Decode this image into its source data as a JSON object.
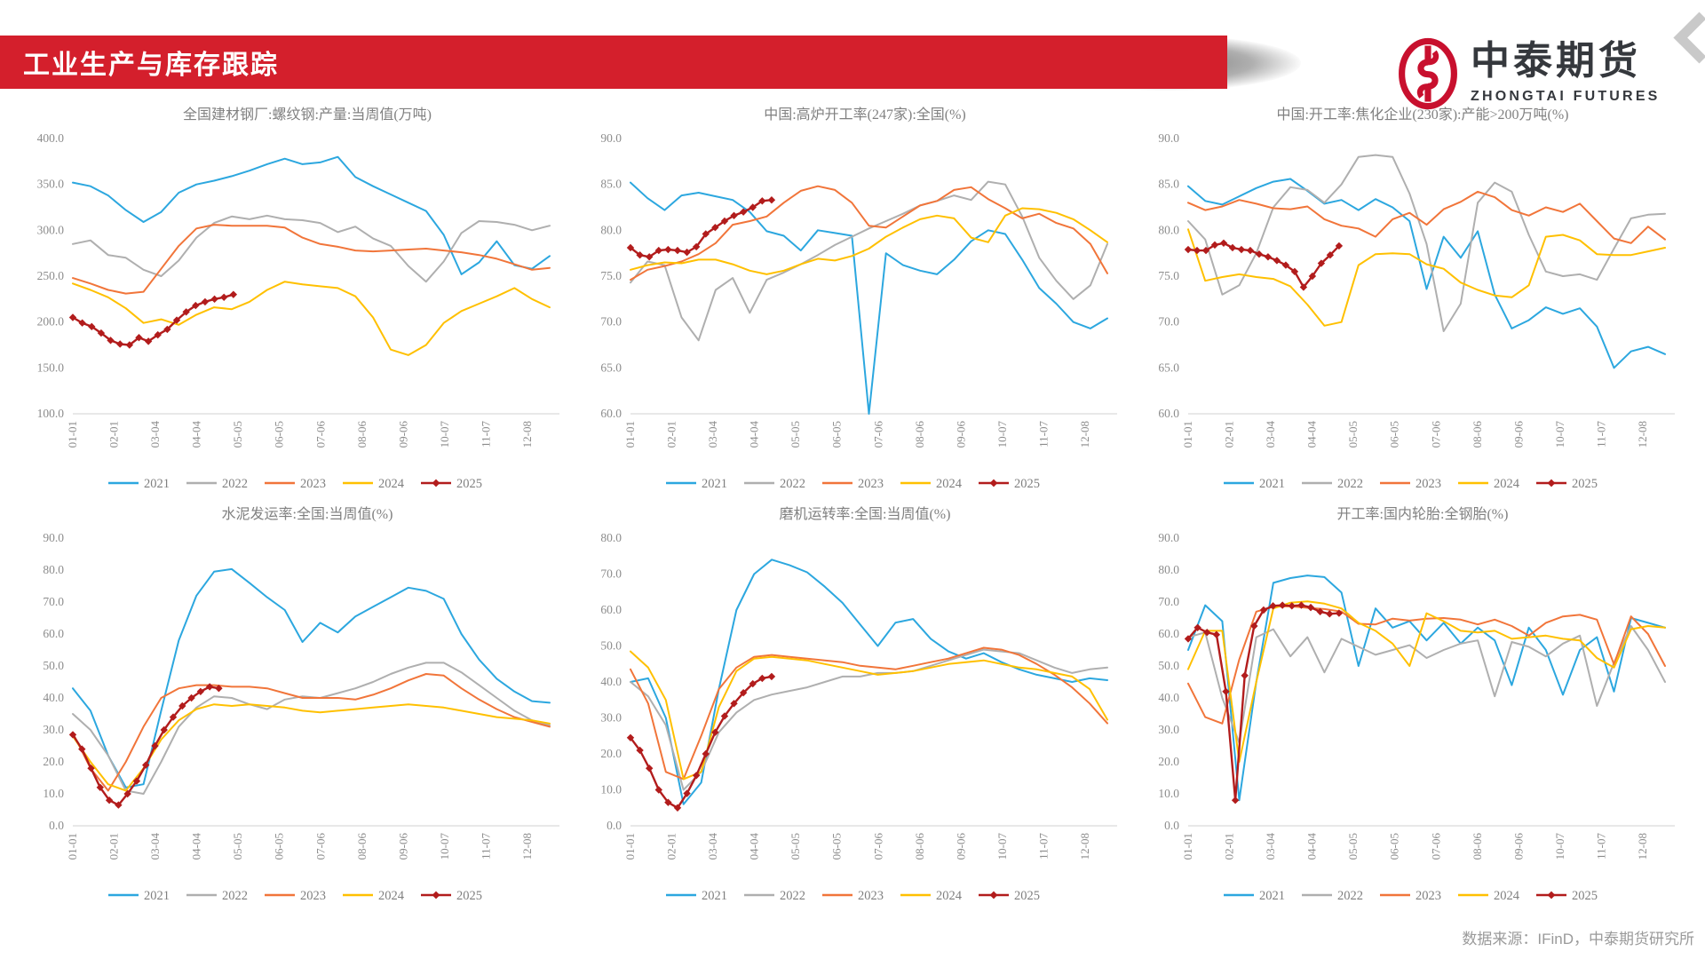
{
  "header": {
    "title": "工业生产与库存跟踪",
    "brand_cn": "中泰期货",
    "brand_en": "ZHONGTAI FUTURES"
  },
  "footer": {
    "source": "数据来源：IFinD，中泰期货研究所"
  },
  "palette": {
    "2021": "#2CA7DF",
    "2022": "#AFAFAF",
    "2023": "#F1753A",
    "2024": "#FFC000",
    "2025": "#B21C1C",
    "banner": "#D41F2C",
    "logo_red": "#C8102E",
    "axis_line": "#D9D9D9",
    "tick_text": "#8C8C8C",
    "title_text": "#808080"
  },
  "legend": [
    "2021",
    "2022",
    "2023",
    "2024",
    "2025"
  ],
  "x_tick_labels": [
    "01-01",
    "02-01",
    "03-04",
    "04-04",
    "05-05",
    "06-05",
    "07-06",
    "08-06",
    "09-06",
    "10-07",
    "11-07",
    "12-08"
  ],
  "chart_data": [
    {
      "type": "line",
      "title": "全国建材钢厂:螺纹钢:产量:当周值(万吨)",
      "ylim": [
        100,
        400
      ],
      "ystep": 50,
      "grid": false,
      "legend_position": "bottom",
      "series": [
        {
          "name": "2021",
          "color": "#2CA7DF",
          "span": 0.98,
          "values": [
            352,
            348,
            338,
            322,
            309,
            320,
            341,
            350,
            354,
            359,
            365,
            372,
            378,
            372,
            374,
            380,
            358,
            348,
            339,
            330,
            321,
            295,
            252,
            265,
            288,
            262,
            258,
            272
          ]
        },
        {
          "name": "2022",
          "color": "#AFAFAF",
          "span": 0.98,
          "values": [
            285,
            289,
            273,
            270,
            257,
            250,
            267,
            292,
            308,
            315,
            312,
            316,
            312,
            311,
            308,
            298,
            304,
            291,
            283,
            261,
            244,
            266,
            297,
            310,
            309,
            306,
            300,
            305
          ]
        },
        {
          "name": "2023",
          "color": "#F1753A",
          "span": 0.98,
          "values": [
            248,
            242,
            235,
            231,
            233,
            258,
            283,
            302,
            306,
            305,
            305,
            305,
            303,
            292,
            285,
            282,
            278,
            277,
            278,
            279,
            280,
            278,
            276,
            273,
            269,
            263,
            257,
            259
          ]
        },
        {
          "name": "2024",
          "color": "#FFC000",
          "span": 0.98,
          "values": [
            242,
            235,
            227,
            215,
            199,
            203,
            197,
            208,
            216,
            214,
            222,
            235,
            244,
            241,
            239,
            237,
            228,
            205,
            170,
            164,
            175,
            199,
            212,
            220,
            228,
            237,
            225,
            216
          ]
        },
        {
          "name": "2025",
          "color": "#B21C1C",
          "span": 0.33,
          "marker": "diamond",
          "values": [
            205,
            199,
            195,
            188,
            180,
            176,
            175,
            183,
            179,
            186,
            192,
            202,
            211,
            218,
            222,
            225,
            227,
            230
          ]
        }
      ]
    },
    {
      "type": "line",
      "title": "中国:高炉开工率(247家):全国(%)",
      "ylim": [
        60,
        90
      ],
      "ystep": 5,
      "grid": false,
      "legend_position": "bottom",
      "series": [
        {
          "name": "2021",
          "color": "#2CA7DF",
          "span": 0.98,
          "values": [
            85.2,
            83.5,
            82.2,
            83.8,
            84.1,
            83.7,
            83.3,
            82.0,
            79.9,
            79.4,
            77.8,
            80.0,
            79.7,
            79.4,
            60.0,
            77.5,
            76.2,
            75.6,
            75.2,
            76.8,
            78.8,
            80.0,
            79.6,
            76.8,
            73.7,
            72.0,
            70.0,
            69.3,
            70.4
          ]
        },
        {
          "name": "2022",
          "color": "#AFAFAF",
          "span": 0.98,
          "values": [
            74.3,
            76.6,
            76.2,
            70.5,
            68.0,
            73.5,
            74.8,
            71.0,
            74.6,
            75.4,
            76.3,
            77.3,
            78.4,
            79.3,
            80.2,
            81.0,
            81.8,
            82.7,
            83.2,
            83.8,
            83.3,
            85.3,
            85.0,
            81.5,
            77.0,
            74.5,
            72.5,
            74.0,
            78.5
          ]
        },
        {
          "name": "2023",
          "color": "#F1753A",
          "span": 0.98,
          "values": [
            74.6,
            75.7,
            76.1,
            76.6,
            77.4,
            78.6,
            80.6,
            81.0,
            81.5,
            83.0,
            84.3,
            84.8,
            84.4,
            83.0,
            80.5,
            80.3,
            81.5,
            82.7,
            83.2,
            84.4,
            84.7,
            83.4,
            82.4,
            81.3,
            81.8,
            80.8,
            80.2,
            78.5,
            75.3
          ]
        },
        {
          "name": "2024",
          "color": "#FFC000",
          "span": 0.98,
          "values": [
            75.7,
            76.2,
            76.5,
            76.4,
            76.8,
            76.8,
            76.3,
            75.6,
            75.2,
            75.6,
            76.3,
            76.9,
            76.7,
            77.2,
            78.0,
            79.3,
            80.3,
            81.2,
            81.6,
            81.3,
            79.2,
            78.7,
            81.6,
            82.4,
            82.3,
            81.9,
            81.2,
            80.0,
            78.7
          ]
        },
        {
          "name": "2025",
          "color": "#B21C1C",
          "span": 0.29,
          "marker": "diamond",
          "values": [
            78.1,
            77.3,
            77.1,
            77.8,
            77.9,
            77.8,
            77.6,
            78.2,
            79.6,
            80.3,
            81.0,
            81.6,
            82.0,
            82.5,
            83.2,
            83.3
          ]
        }
      ]
    },
    {
      "type": "line",
      "title": "中国:开工率:焦化企业(230家):产能>200万吨(%)",
      "ylim": [
        60,
        90
      ],
      "ystep": 5,
      "grid": false,
      "legend_position": "bottom",
      "series": [
        {
          "name": "2021",
          "color": "#2CA7DF",
          "span": 0.98,
          "values": [
            84.8,
            83.2,
            82.8,
            83.7,
            84.6,
            85.3,
            85.6,
            84.3,
            82.9,
            83.3,
            82.2,
            83.4,
            82.5,
            81.0,
            73.6,
            79.3,
            77.0,
            79.9,
            73.0,
            69.3,
            70.2,
            71.6,
            70.9,
            71.5,
            69.5,
            65.0,
            66.8,
            67.3,
            66.5
          ]
        },
        {
          "name": "2022",
          "color": "#AFAFAF",
          "span": 0.98,
          "values": [
            81.0,
            79.0,
            73.0,
            74.0,
            77.5,
            82.5,
            84.7,
            84.4,
            83.0,
            85.0,
            88.0,
            88.2,
            88.0,
            84.0,
            78.5,
            69.0,
            72.0,
            83.0,
            85.2,
            84.2,
            79.5,
            75.5,
            75.0,
            75.2,
            74.6,
            78.0,
            81.3,
            81.7,
            81.8
          ]
        },
        {
          "name": "2023",
          "color": "#F1753A",
          "span": 0.98,
          "values": [
            83.0,
            82.2,
            82.6,
            83.3,
            82.9,
            82.4,
            82.3,
            82.6,
            81.2,
            80.5,
            80.2,
            79.3,
            81.2,
            81.9,
            80.6,
            82.3,
            83.1,
            84.2,
            83.6,
            82.2,
            81.6,
            82.5,
            82.0,
            82.9,
            81.0,
            79.1,
            78.6,
            80.4,
            79.0
          ]
        },
        {
          "name": "2024",
          "color": "#FFC000",
          "span": 0.98,
          "values": [
            80.1,
            74.5,
            74.9,
            75.2,
            74.9,
            74.7,
            73.9,
            71.9,
            69.6,
            70.0,
            76.2,
            77.4,
            77.5,
            77.4,
            76.3,
            75.8,
            74.3,
            73.5,
            72.9,
            72.7,
            74.0,
            79.3,
            79.5,
            78.9,
            77.4,
            77.3,
            77.3,
            77.7,
            78.1
          ]
        },
        {
          "name": "2025",
          "color": "#B21C1C",
          "span": 0.31,
          "marker": "diamond",
          "values": [
            77.9,
            77.8,
            77.8,
            78.4,
            78.6,
            78.1,
            77.9,
            77.8,
            77.4,
            77.1,
            76.7,
            76.2,
            75.5,
            73.8,
            75.0,
            76.4,
            77.3,
            78.3
          ]
        }
      ]
    },
    {
      "type": "line",
      "title": "水泥发运率:全国:当周值(%)",
      "ylim": [
        0,
        90
      ],
      "ystep": 10,
      "grid": false,
      "legend_position": "bottom",
      "series": [
        {
          "name": "2021",
          "color": "#2CA7DF",
          "span": 0.98,
          "values": [
            43,
            36,
            22,
            12,
            13,
            36,
            58,
            72,
            79.5,
            80.3,
            76,
            71.5,
            67.5,
            57.5,
            63.5,
            60.5,
            65.5,
            68.5,
            71.5,
            74.5,
            73.5,
            71,
            60,
            52,
            46,
            42,
            39,
            38.5
          ]
        },
        {
          "name": "2022",
          "color": "#AFAFAF",
          "span": 0.98,
          "values": [
            35,
            30,
            22,
            11,
            10,
            20,
            31,
            37,
            40.5,
            40,
            38,
            36.5,
            39.5,
            40.5,
            40,
            41.5,
            43,
            45,
            47.5,
            49.5,
            51,
            51,
            48,
            44,
            40,
            36,
            33,
            31.5
          ]
        },
        {
          "name": "2023",
          "color": "#F1753A",
          "span": 0.98,
          "values": [
            29,
            18,
            11,
            20,
            31,
            40,
            43,
            44,
            44,
            43.5,
            43.5,
            43,
            41.5,
            40,
            40,
            40,
            39.5,
            41,
            43,
            45.5,
            47.5,
            47,
            43,
            39.5,
            36.5,
            34,
            32.5,
            31
          ]
        },
        {
          "name": "2024",
          "color": "#FFC000",
          "span": 0.98,
          "values": [
            28,
            20,
            13,
            11,
            18,
            27,
            33,
            36.5,
            38,
            37.5,
            38,
            37.5,
            37,
            36,
            35.5,
            36,
            36.5,
            37,
            37.5,
            38,
            37.5,
            37,
            36,
            35,
            34,
            33.5,
            33,
            32
          ]
        },
        {
          "name": "2025",
          "color": "#B21C1C",
          "span": 0.3,
          "marker": "diamond",
          "values": [
            28.5,
            24,
            18,
            12,
            8,
            6.5,
            10,
            14,
            19,
            25,
            30,
            34,
            37.5,
            40,
            42,
            43.5,
            43
          ]
        }
      ]
    },
    {
      "type": "line",
      "title": "磨机运转率:全国:当周值(%)",
      "ylim": [
        0,
        80
      ],
      "ystep": 10,
      "grid": false,
      "legend_position": "bottom",
      "series": [
        {
          "name": "2021",
          "color": "#2CA7DF",
          "span": 0.98,
          "values": [
            40,
            41,
            30,
            6,
            12,
            38,
            60,
            70,
            74,
            72.5,
            70.5,
            66.5,
            62,
            56,
            50,
            56.5,
            57.5,
            52,
            48.5,
            46.5,
            48,
            45.5,
            43.5,
            42,
            41,
            40,
            41,
            40.5
          ]
        },
        {
          "name": "2022",
          "color": "#AFAFAF",
          "span": 0.98,
          "values": [
            40,
            36,
            28,
            10,
            15,
            26,
            31.5,
            35,
            36.5,
            37.5,
            38.5,
            40,
            41.5,
            41.5,
            42.5,
            42.5,
            43,
            44.5,
            46,
            47.5,
            49,
            48.5,
            48,
            46,
            44,
            42.5,
            43.5,
            44
          ]
        },
        {
          "name": "2023",
          "color": "#F1753A",
          "span": 0.98,
          "values": [
            43.5,
            34,
            15,
            13,
            25,
            38,
            44,
            47,
            47.5,
            47,
            46.5,
            46,
            45.5,
            44.5,
            44,
            43.5,
            44.5,
            45.5,
            46.5,
            48,
            49.5,
            49,
            47.5,
            45,
            42,
            38.5,
            34,
            28.5
          ]
        },
        {
          "name": "2024",
          "color": "#FFC000",
          "span": 0.98,
          "values": [
            48.5,
            44,
            35,
            13,
            15,
            33,
            43,
            46.5,
            47,
            46.5,
            46,
            45,
            44,
            43,
            42,
            42.5,
            43,
            44,
            45,
            45.5,
            46,
            45,
            44,
            43.5,
            42.5,
            41.5,
            38,
            29.5
          ]
        },
        {
          "name": "2025",
          "color": "#B21C1C",
          "span": 0.29,
          "marker": "diamond",
          "values": [
            24.5,
            21,
            16,
            10,
            6.5,
            5,
            9,
            14,
            20,
            26,
            30.5,
            34,
            37,
            39.5,
            41,
            41.5
          ]
        }
      ]
    },
    {
      "type": "line",
      "title": "开工率:国内轮胎:全钢胎(%)",
      "ylim": [
        0,
        90
      ],
      "ystep": 10,
      "grid": false,
      "legend_position": "bottom",
      "series": [
        {
          "name": "2021",
          "color": "#2CA7DF",
          "span": 0.98,
          "values": [
            55,
            69,
            64,
            8,
            45,
            76,
            77.5,
            78.3,
            77.8,
            73,
            50,
            68,
            62,
            64,
            58,
            63.5,
            57,
            62,
            58,
            44,
            62,
            55,
            41,
            55,
            59,
            42,
            65,
            63.5,
            62
          ]
        },
        {
          "name": "2022",
          "color": "#AFAFAF",
          "span": 0.98,
          "values": [
            59,
            60.5,
            40,
            26,
            59,
            61.5,
            53,
            59,
            48,
            58.5,
            56,
            53.5,
            55,
            56.5,
            52.5,
            55,
            57,
            58,
            40.5,
            57.5,
            56,
            53,
            57,
            59.5,
            37.5,
            51,
            62.5,
            55,
            45
          ]
        },
        {
          "name": "2023",
          "color": "#F1753A",
          "span": 0.98,
          "values": [
            44.5,
            34,
            32,
            52,
            67,
            68.5,
            68.7,
            68.2,
            67.8,
            67,
            63.2,
            63,
            64.8,
            64.2,
            64.8,
            65,
            64.5,
            63,
            64.5,
            62.5,
            59.5,
            63.5,
            65.5,
            66,
            64.5,
            50.5,
            65.5,
            60,
            50
          ]
        },
        {
          "name": "2024",
          "color": "#FFC000",
          "span": 0.98,
          "values": [
            49,
            61,
            61,
            20,
            45,
            68,
            69.8,
            70.2,
            69.5,
            68,
            63.5,
            61,
            57,
            50,
            66.5,
            64,
            61,
            60.5,
            61,
            58.5,
            59,
            59.5,
            58.5,
            58,
            52.5,
            49.5,
            61.5,
            62.5,
            62
          ]
        },
        {
          "name": "2025",
          "color": "#B21C1C",
          "span": 0.31,
          "marker": "diamond",
          "values": [
            58.5,
            62,
            60.5,
            59.8,
            42,
            8,
            47,
            62.5,
            67.5,
            68.8,
            69,
            68.8,
            69,
            68.3,
            67,
            66.3,
            66.5
          ]
        }
      ]
    }
  ]
}
